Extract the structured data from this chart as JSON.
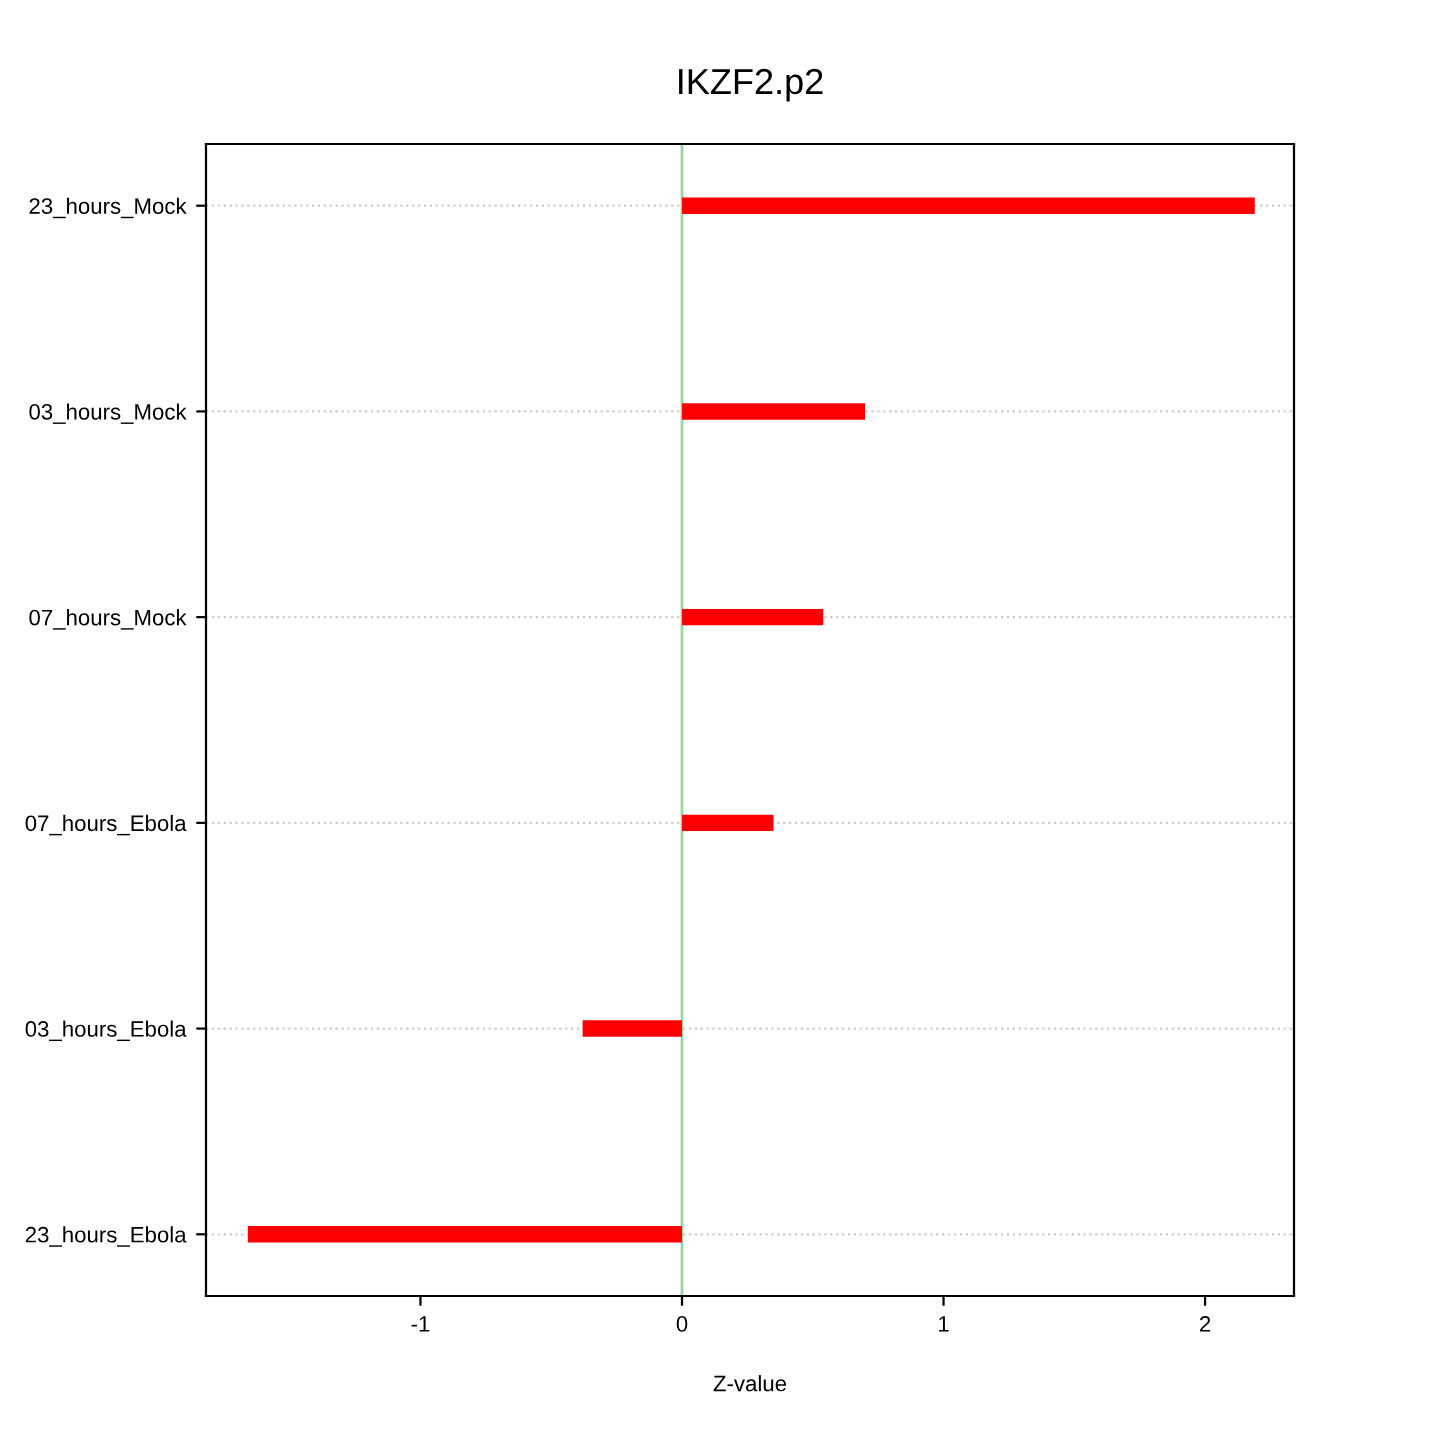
{
  "chart_data": {
    "type": "bar",
    "orientation": "horizontal",
    "title": "IKZF2.p2",
    "xlabel": "Z-value",
    "categories": [
      "23_hours_Mock",
      "03_hours_Mock",
      "07_hours_Mock",
      "07_hours_Ebola",
      "03_hours_Ebola",
      "23_hours_Ebola"
    ],
    "values": [
      2.19,
      0.7,
      0.54,
      0.35,
      -0.38,
      -1.66
    ],
    "color": "#ff0000",
    "xlim": [
      -1.82,
      2.34
    ],
    "xticks": [
      -1,
      0,
      1,
      2
    ],
    "grid": "y",
    "ref_lines": [
      {
        "axis": "x",
        "value": 0,
        "color": "#99d6a0"
      }
    ]
  }
}
